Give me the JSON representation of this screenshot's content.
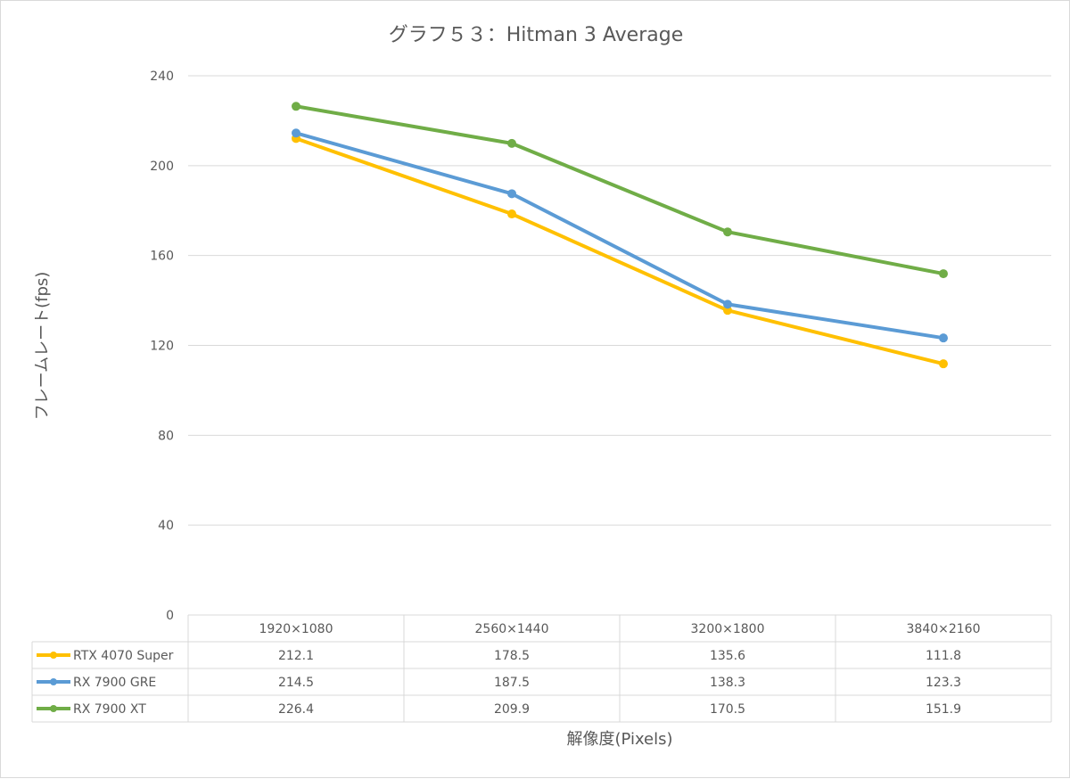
{
  "chart_data": {
    "type": "line",
    "title": "グラフ５３：Hitman 3 Average",
    "xlabel": "解像度(Pixels)",
    "ylabel": "フレームレート(fps)",
    "categories": [
      "1920×1080",
      "2560×1440",
      "3200×1800",
      "3840×2160"
    ],
    "ylim": [
      0,
      240
    ],
    "yticks": [
      0,
      40,
      80,
      120,
      160,
      200,
      240
    ],
    "grid": true,
    "legend": "data-table",
    "series": [
      {
        "name": "RTX 4070 Super",
        "color": "#ffc000",
        "values": [
          212.1,
          178.5,
          135.6,
          111.8
        ],
        "labels": [
          "212.1",
          "178.5",
          "135.6",
          "111.8"
        ]
      },
      {
        "name": "RX 7900 GRE",
        "color": "#5b9bd5",
        "values": [
          214.5,
          187.5,
          138.3,
          123.3
        ],
        "labels": [
          "214.5",
          "187.5",
          "138.3",
          "123.3"
        ]
      },
      {
        "name": "RX 7900 XT",
        "color": "#70ad47",
        "values": [
          226.4,
          209.9,
          170.5,
          151.9
        ],
        "labels": [
          "226.4",
          "209.9",
          "170.5",
          "151.9"
        ]
      }
    ]
  }
}
